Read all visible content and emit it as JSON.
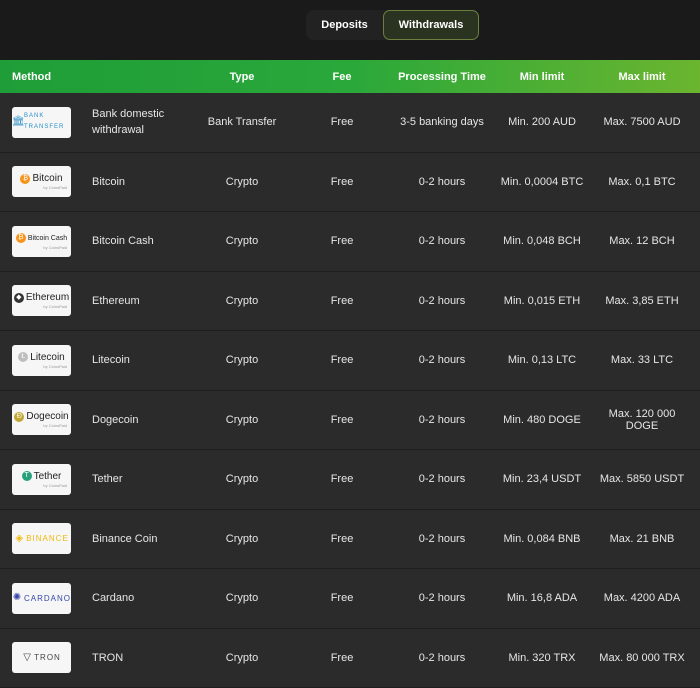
{
  "tabs": [
    {
      "label": "Deposits",
      "active": false
    },
    {
      "label": "Withdrawals",
      "active": true
    }
  ],
  "table": {
    "headers": [
      "Method",
      "Type",
      "Fee",
      "Processing Time",
      "Min limit",
      "Max limit"
    ],
    "rows": [
      {
        "logo": "BANK TRANSFER",
        "icon": "bank-icon",
        "icon_color": "#2b8fc9",
        "method": "Bank domestic withdrawal",
        "type": "Bank Transfer",
        "fee": "Free",
        "time": "3-5 banking days",
        "min": "Min. 200 AUD",
        "max": "Max. 7500 AUD"
      },
      {
        "logo": "Bitcoin",
        "logo_sub": "by CoinsPaid",
        "icon": "bitcoin-icon",
        "icon_color": "#f7931a",
        "method": "Bitcoin",
        "type": "Crypto",
        "fee": "Free",
        "time": "0-2 hours",
        "min": "Min. 0,0004 BTC",
        "max": "Max. 0,1 BTC"
      },
      {
        "logo": "Bitcoin Cash",
        "logo_sub": "by CoinsPaid",
        "icon": "bitcoin-cash-icon",
        "icon_color": "#f7931a",
        "method": "Bitcoin Cash",
        "type": "Crypto",
        "fee": "Free",
        "time": "0-2 hours",
        "min": "Min. 0,048 BCH",
        "max": "Max. 12 BCH"
      },
      {
        "logo": "Ethereum",
        "logo_sub": "by CoinsPaid",
        "icon": "ethereum-icon",
        "icon_color": "#333333",
        "method": "Ethereum",
        "type": "Crypto",
        "fee": "Free",
        "time": "0-2 hours",
        "min": "Min. 0,015 ETH",
        "max": "Max. 3,85 ETH"
      },
      {
        "logo": "Litecoin",
        "logo_sub": "by CoinsPaid",
        "icon": "litecoin-icon",
        "icon_color": "#bebebe",
        "method": "Litecoin",
        "type": "Crypto",
        "fee": "Free",
        "time": "0-2 hours",
        "min": "Min. 0,13 LTC",
        "max": "Max. 33 LTC"
      },
      {
        "logo": "Dogecoin",
        "logo_sub": "by CoinsPaid",
        "icon": "dogecoin-icon",
        "icon_color": "#c2a633",
        "method": "Dogecoin",
        "type": "Crypto",
        "fee": "Free",
        "time": "0-2 hours",
        "min": "Min. 480 DOGE",
        "max": "Max. 120 000 DOGE"
      },
      {
        "logo": "Tether",
        "logo_sub": "by CoinsPaid",
        "icon": "tether-icon",
        "icon_color": "#26a17b",
        "method": "Tether",
        "type": "Crypto",
        "fee": "Free",
        "time": "0-2 hours",
        "min": "Min. 23,4 USDT",
        "max": "Max. 5850 USDT"
      },
      {
        "logo": "BINANCE",
        "icon": "binance-icon",
        "icon_color": "#f0b90b",
        "method": "Binance Coin",
        "type": "Crypto",
        "fee": "Free",
        "time": "0-2 hours",
        "min": "Min. 0,084 BNB",
        "max": "Max. 21 BNB"
      },
      {
        "logo": "CARDANO",
        "icon": "cardano-icon",
        "icon_color": "#3848a8",
        "method": "Cardano",
        "type": "Crypto",
        "fee": "Free",
        "time": "0-2 hours",
        "min": "Min. 16,8 ADA",
        "max": "Max. 4200 ADA"
      },
      {
        "logo": "TRON",
        "icon": "tron-icon",
        "icon_color": "#444444",
        "method": "TRON",
        "type": "Crypto",
        "fee": "Free",
        "time": "0-2 hours",
        "min": "Min. 320 TRX",
        "max": "Max. 80 000 TRX"
      }
    ]
  }
}
